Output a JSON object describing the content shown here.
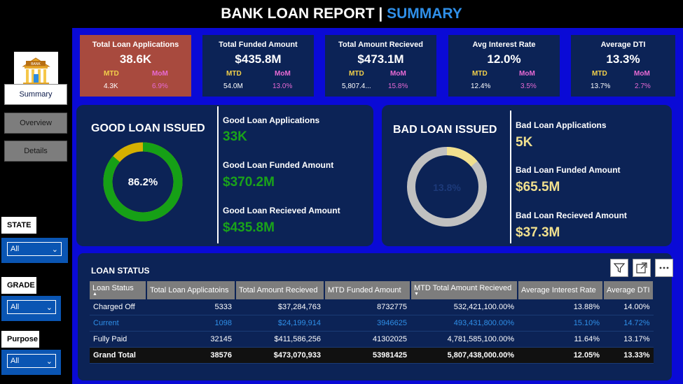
{
  "header": {
    "title_main": "BANK LOAN REPORT | ",
    "title_accent": "SUMMARY"
  },
  "logo": {
    "text": "BANK",
    "icon": "bank-icon"
  },
  "nav": {
    "summary": "Summary",
    "overview": "Overview",
    "details": "Details"
  },
  "filters": [
    {
      "label": "STATE",
      "value": "All"
    },
    {
      "label": "GRADE",
      "value": "All"
    },
    {
      "label": "Purpose",
      "value": "All"
    }
  ],
  "kpis": [
    {
      "title": "Total Loan Applications",
      "value": "38.6K",
      "mtd_label": "MTD",
      "mom_label": "MoM",
      "mtd": "4.3K",
      "mom": "6.9%"
    },
    {
      "title": "Total Funded Amount",
      "value": "$435.8M",
      "mtd_label": "MTD",
      "mom_label": "MoM",
      "mtd": "54.0M",
      "mom": "13.0%"
    },
    {
      "title": "Total Amount Recieved",
      "value": "$473.1M",
      "mtd_label": "MTD",
      "mom_label": "MoM",
      "mtd": "5,807.4...",
      "mom": "15.8%"
    },
    {
      "title": "Avg Interest Rate",
      "value": "12.0%",
      "mtd_label": "MTD",
      "mom_label": "MoM",
      "mtd": "12.4%",
      "mom": "3.5%"
    },
    {
      "title": "Average DTI",
      "value": "13.3%",
      "mtd_label": "MTD",
      "mom_label": "MoM",
      "mtd": "13.7%",
      "mom": "2.7%"
    }
  ],
  "good": {
    "title": "GOOD LOAN ISSUED",
    "pct_label": "86.2%",
    "pct": 86.2,
    "apps_label": "Good Loan Applications",
    "apps": "33K",
    "funded_label": "Good Loan Funded Amount",
    "funded": "$370.2M",
    "received_label": "Good Loan Recieved Amount",
    "received": "$435.8M",
    "colors": {
      "main": "#16a016",
      "rest": "#d4b000"
    }
  },
  "bad": {
    "title": "BAD LOAN ISSUED",
    "pct_label": "13.8%",
    "pct": 13.8,
    "apps_label": "Bad Loan Applications",
    "apps": "5K",
    "funded_label": "Bad Loan Funded Amount",
    "funded": "$65.5M",
    "received_label": "Bad Loan Recieved Amount",
    "received": "$37.3M",
    "colors": {
      "main": "#f1e08e",
      "rest": "#c0c0c0"
    }
  },
  "loan_status": {
    "title": "LOAN STATUS",
    "icons": [
      "filter-icon",
      "expand-icon",
      "more-options-icon"
    ],
    "columns": [
      "Loan Status",
      "Total Loan Applicatoins",
      "Total Amount Recieved",
      "MTD Funded Amount",
      "MTD Total Amount Recieved",
      "Average Interest Rate",
      "Average DTI"
    ],
    "rows": [
      [
        "Charged Off",
        "5333",
        "$37,284,763",
        "8732775",
        "532,421,100.00%",
        "13.88%",
        "14.00%"
      ],
      [
        "Current",
        "1098",
        "$24,199,914",
        "3946625",
        "493,431,800.00%",
        "15.10%",
        "14.72%"
      ],
      [
        "Fully Paid",
        "32145",
        "$411,586,256",
        "41302025",
        "4,781,585,100.00%",
        "11.64%",
        "13.17%"
      ]
    ],
    "total": [
      "Grand Total",
      "38576",
      "$473,070,933",
      "53981425",
      "5,807,438,000.00%",
      "12.05%",
      "13.33%"
    ]
  }
}
